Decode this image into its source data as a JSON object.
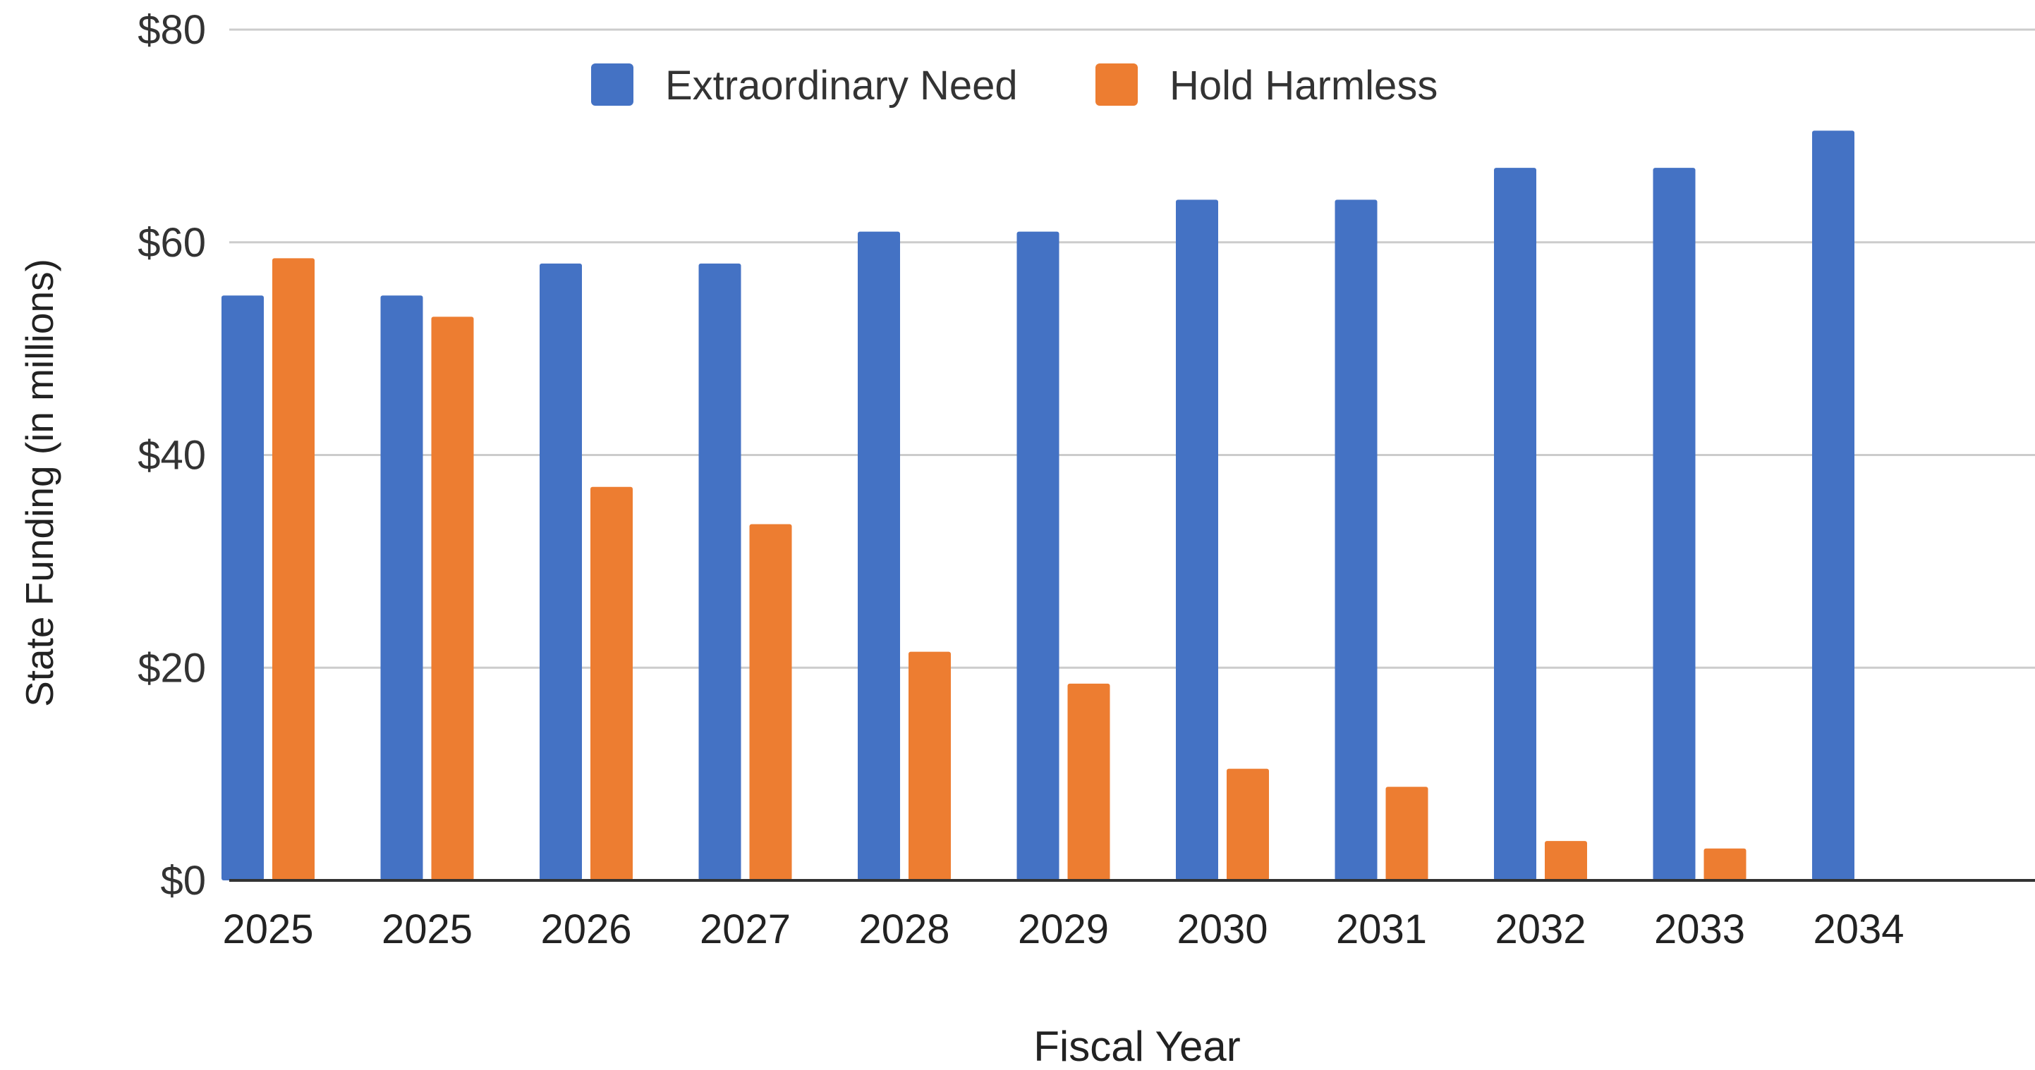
{
  "chart_data": {
    "type": "bar",
    "title": "",
    "xlabel": "Fiscal Year",
    "ylabel": "State Funding (in millions)",
    "categories": [
      "2025",
      "2025",
      "2026",
      "2027",
      "2028",
      "2029",
      "2030",
      "2031",
      "2032",
      "2033",
      "2034"
    ],
    "series": [
      {
        "name": "Extraordinary Need",
        "color": "#4472c4",
        "values": [
          55,
          55,
          58,
          58,
          61,
          61,
          64,
          64,
          67,
          67,
          70.5
        ]
      },
      {
        "name": "Hold Harmless",
        "color": "#ed7d31",
        "values": [
          58.5,
          53,
          37,
          33.5,
          21.5,
          18.5,
          10.5,
          8.8,
          3.7,
          3.0,
          null
        ]
      }
    ],
    "ylim": [
      0,
      80
    ],
    "yticks": [
      0,
      20,
      40,
      60,
      80
    ],
    "ytick_labels": [
      "$0",
      "$20",
      "$40",
      "$60",
      "$80"
    ],
    "grid": true,
    "legend_position": "top-center"
  }
}
